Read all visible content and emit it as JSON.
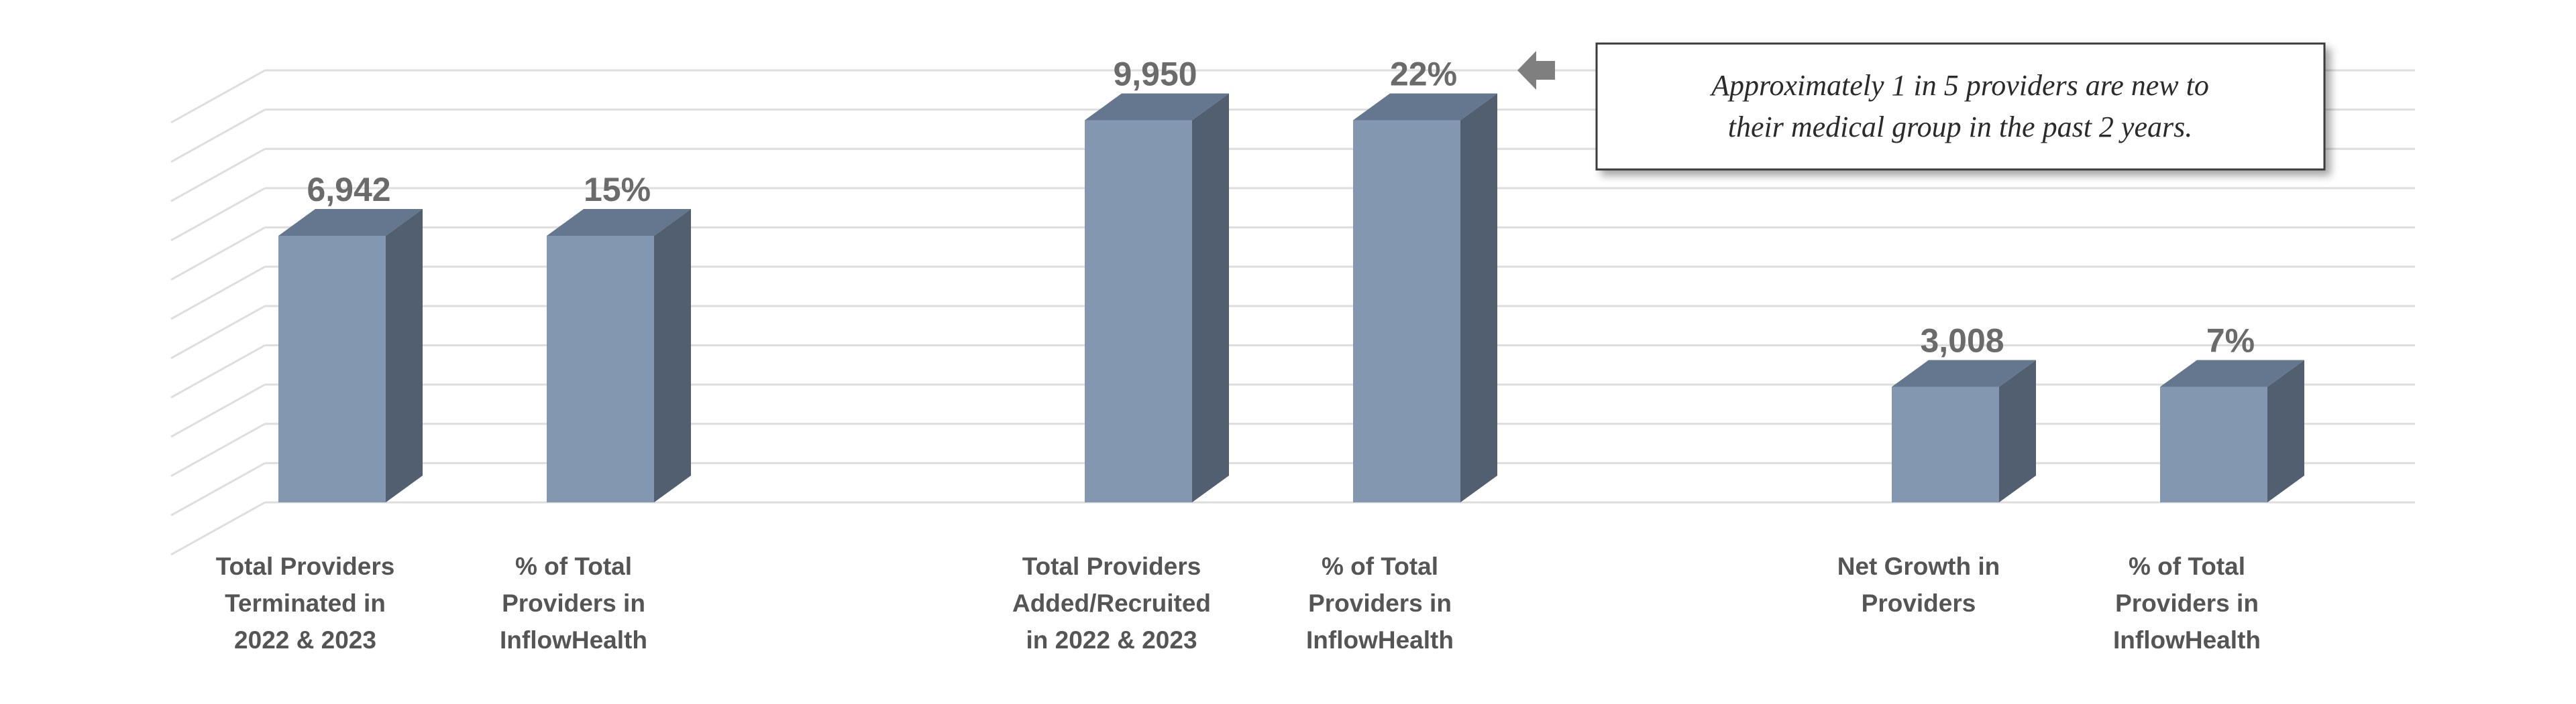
{
  "chart_data": {
    "type": "bar",
    "style": "3d-column",
    "grid": true,
    "legend": "none",
    "ylim": [
      0,
      11250
    ],
    "bar_color": "#8497b0",
    "bar_side_color": "#525f70",
    "bar_top_color": "#65778e",
    "groups": [
      {
        "bars": [
          {
            "category": "Total Providers Terminated in 2022 & 2023",
            "lines": [
              "Total Providers",
              "Terminated in",
              "2022 & 2023"
            ],
            "value": 6942,
            "label": "6,942"
          },
          {
            "category": "% of Total Providers in InflowHealth",
            "lines": [
              "% of Total",
              "Providers in",
              "InflowHealth"
            ],
            "value": 6942,
            "label": "15%"
          }
        ]
      },
      {
        "bars": [
          {
            "category": "Total Providers Added/Recruited in 2022 & 2023",
            "lines": [
              "Total Providers",
              "Added/Recruited",
              "in 2022 & 2023"
            ],
            "value": 9950,
            "label": "9,950"
          },
          {
            "category": "% of Total Providers in InflowHealth",
            "lines": [
              "% of Total",
              "Providers in",
              "InflowHealth"
            ],
            "value": 9950,
            "label": "22%"
          }
        ]
      },
      {
        "bars": [
          {
            "category": "Net Growth in Providers",
            "lines": [
              "Net Growth in",
              "Providers"
            ],
            "value": 3008,
            "label": "3,008"
          },
          {
            "category": "% of Total Providers in InflowHealth",
            "lines": [
              "% of Total",
              "Providers in",
              "InflowHealth"
            ],
            "value": 3008,
            "label": "7%"
          }
        ]
      }
    ],
    "annotation": {
      "lines": [
        "Approximately 1 in 5 providers are new to",
        "their medical group in the past 2 years."
      ],
      "points_to": "22%"
    }
  }
}
